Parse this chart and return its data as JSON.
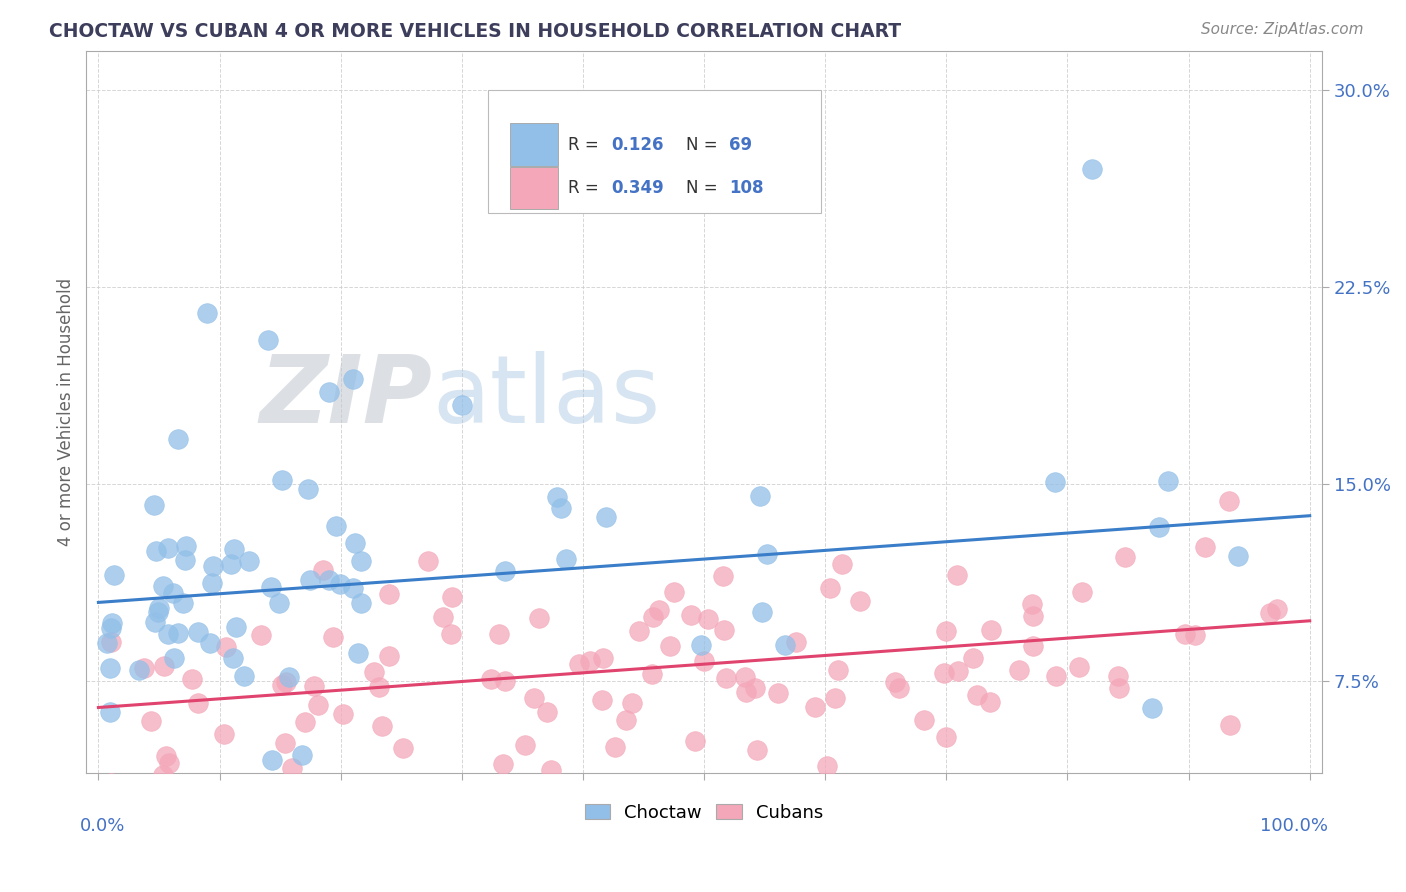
{
  "title": "CHOCTAW VS CUBAN 4 OR MORE VEHICLES IN HOUSEHOLD CORRELATION CHART",
  "source_text": "Source: ZipAtlas.com",
  "ylabel": "4 or more Vehicles in Household",
  "ytick_labels": [
    "7.5%",
    "15.0%",
    "22.5%",
    "30.0%"
  ],
  "ytick_values": [
    0.075,
    0.15,
    0.225,
    0.3
  ],
  "xlim": [
    -0.01,
    1.01
  ],
  "ylim": [
    0.04,
    0.315
  ],
  "choctaw_color": "#92bfe8",
  "cuban_color": "#f4a7b9",
  "line_choctaw_color": "#3a7dc9",
  "line_cuban_color": "#e0436e",
  "choctaw_line_start": 0.105,
  "choctaw_line_end": 0.138,
  "cuban_line_start": 0.065,
  "cuban_line_end": 0.098,
  "background_color": "#ffffff",
  "grid_color": "#cccccc",
  "axis_label_color": "#4472c4",
  "title_color": "#3d3d5c",
  "source_color": "#888888"
}
